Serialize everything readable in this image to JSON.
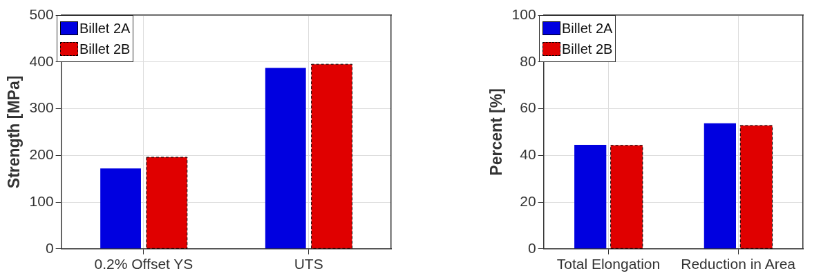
{
  "chart_data": [
    {
      "type": "bar",
      "categories": [
        "0.2% Offset YS",
        "UTS"
      ],
      "ylabel": "Strength [MPa]",
      "ylim": [
        0,
        500
      ],
      "yticks": [
        0,
        100,
        200,
        300,
        400,
        500
      ],
      "grid": true,
      "legend": "top left",
      "series": [
        {
          "name": "Billet 2A",
          "color": "#0000e0",
          "values": [
            172,
            387
          ]
        },
        {
          "name": "Billet 2B",
          "color": "#e00000",
          "values": [
            196,
            395
          ],
          "line_style": "dashed"
        }
      ]
    },
    {
      "type": "bar",
      "categories": [
        "Total Elongation",
        "Reduction in Area"
      ],
      "ylabel": "Percent [%]",
      "ylim": [
        0,
        100
      ],
      "yticks": [
        0,
        20,
        40,
        60,
        80,
        100
      ],
      "grid": true,
      "legend": "top left",
      "series": [
        {
          "name": "Billet 2A",
          "color": "#0000e0",
          "values": [
            44.5,
            53.7
          ]
        },
        {
          "name": "Billet 2B",
          "color": "#e00000",
          "values": [
            44.3,
            52.8
          ],
          "line_style": "dashed"
        }
      ]
    }
  ]
}
